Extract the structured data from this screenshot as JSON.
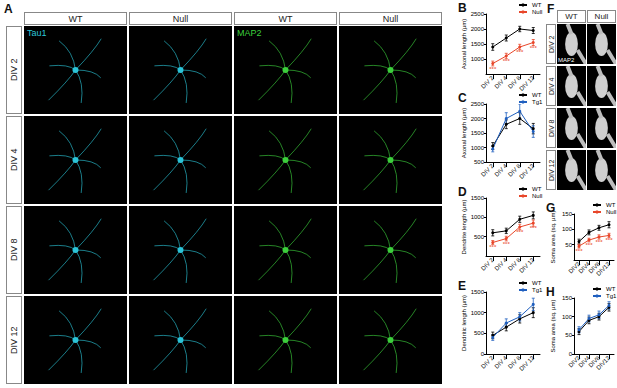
{
  "panel_a": {
    "panel": "A",
    "columns": [
      {
        "label": "WT",
        "stain": "Tau1",
        "color": "#2bc4d8"
      },
      {
        "label": "Null",
        "stain": null,
        "color": "#2bc4d8"
      },
      {
        "label": "WT",
        "stain": "MAP2",
        "color": "#3ccf3c"
      },
      {
        "label": "Null",
        "stain": null,
        "color": "#3ccf3c"
      }
    ],
    "rows": [
      "DIV 2",
      "DIV 4",
      "DIV 8",
      "DIV 12"
    ]
  },
  "panel_f": {
    "panel": "F",
    "columns": [
      "WT",
      "Null"
    ],
    "rows": [
      "DIV 2",
      "DIV 4",
      "DIV 8",
      "DIV 12"
    ],
    "stain": "MAP2"
  },
  "chart_data": [
    {
      "panel": "B",
      "type": "line",
      "y_label": "Axonal length (µm)",
      "categories": [
        "DIV 2",
        "DIV 4",
        "DIV 8",
        "DIV 12"
      ],
      "ylim": [
        500,
        2500
      ],
      "yticks": [
        1000,
        1500,
        2000,
        2500
      ],
      "legend": "upper right",
      "marker": "circle",
      "series": [
        {
          "name": "WT",
          "color": "#000000",
          "values": [
            1400,
            1700,
            2000,
            1950
          ],
          "errors": [
            110,
            100,
            90,
            100
          ]
        },
        {
          "name": "Null",
          "color": "#e8462a",
          "values": [
            850,
            1100,
            1400,
            1550
          ],
          "errors": [
            80,
            90,
            90,
            100
          ],
          "annotations": [
            "***",
            "***",
            "***",
            "***"
          ]
        }
      ]
    },
    {
      "panel": "C",
      "type": "line",
      "y_label": "Axonal length (µm)",
      "categories": [
        "DIV 2",
        "DIV 4",
        "DIV 8",
        "DIV 12"
      ],
      "ylim": [
        500,
        2500
      ],
      "yticks": [
        500,
        1000,
        1500,
        2000,
        2500
      ],
      "legend": "upper right",
      "marker": "circle",
      "series": [
        {
          "name": "WT",
          "color": "#000000",
          "values": [
            1050,
            1800,
            2000,
            1650
          ],
          "errors": [
            120,
            150,
            200,
            180
          ]
        },
        {
          "name": "Tg1",
          "color": "#1f5fbf",
          "values": [
            950,
            2000,
            2250,
            1550
          ],
          "errors": [
            100,
            200,
            250,
            200
          ]
        }
      ]
    },
    {
      "panel": "D",
      "type": "line",
      "y_label": "Dendrite length (µm)",
      "categories": [
        "DIV 2",
        "DIV 4",
        "DIV 8",
        "DIV 12"
      ],
      "ylim": [
        0,
        1500
      ],
      "yticks": [
        500,
        1000,
        1500
      ],
      "legend": "upper right",
      "marker": "circle",
      "series": [
        {
          "name": "WT",
          "color": "#000000",
          "values": [
            600,
            650,
            950,
            1050
          ],
          "errors": [
            80,
            70,
            80,
            90
          ]
        },
        {
          "name": "Null",
          "color": "#e8462a",
          "values": [
            350,
            450,
            750,
            850
          ],
          "errors": [
            50,
            60,
            70,
            80
          ],
          "annotations": [
            "***",
            "***",
            "***",
            "***"
          ]
        }
      ]
    },
    {
      "panel": "E",
      "type": "line",
      "y_label": "Dendritic length (µm)",
      "categories": [
        "DIV 2",
        "DIV 4",
        "DIV 8",
        "DIV 12"
      ],
      "ylim": [
        0,
        1500
      ],
      "yticks": [
        0,
        500,
        1000,
        1500
      ],
      "legend": "upper right",
      "marker": "circle",
      "series": [
        {
          "name": "WT",
          "color": "#000000",
          "values": [
            450,
            650,
            850,
            1000
          ],
          "errors": [
            80,
            90,
            100,
            120
          ]
        },
        {
          "name": "Tg1",
          "color": "#1f5fbf",
          "values": [
            400,
            750,
            900,
            1200
          ],
          "errors": [
            70,
            100,
            100,
            150
          ]
        }
      ]
    },
    {
      "panel": "G",
      "type": "line",
      "y_label": "Soma area (sq. µm)",
      "categories": [
        "DIV2",
        "DIV4",
        "DIV8",
        "DIV12"
      ],
      "ylim": [
        0,
        150
      ],
      "yticks": [
        50,
        100,
        150
      ],
      "legend": "upper right",
      "marker": "circle",
      "series": [
        {
          "name": "WT",
          "color": "#000000",
          "values": [
            60,
            90,
            105,
            115
          ],
          "errors": [
            8,
            8,
            8,
            10
          ]
        },
        {
          "name": "Null",
          "color": "#e8462a",
          "values": [
            45,
            65,
            75,
            80
          ],
          "errors": [
            6,
            6,
            7,
            7
          ],
          "annotations": [
            "***",
            "***",
            "***",
            "***"
          ]
        }
      ]
    },
    {
      "panel": "H",
      "type": "line",
      "y_label": "Soma area (sq. µm)",
      "categories": [
        "DIV2",
        "DIV4",
        "DIV8",
        "DIV12"
      ],
      "ylim": [
        0,
        150
      ],
      "yticks": [
        0,
        50,
        100,
        150
      ],
      "legend": "upper right",
      "marker": "circle",
      "series": [
        {
          "name": "WT",
          "color": "#000000",
          "values": [
            60,
            90,
            100,
            125
          ],
          "errors": [
            8,
            9,
            9,
            10
          ]
        },
        {
          "name": "Tg1",
          "color": "#1f5fbf",
          "values": [
            65,
            95,
            105,
            130
          ],
          "errors": [
            8,
            9,
            10,
            10
          ]
        }
      ]
    }
  ]
}
